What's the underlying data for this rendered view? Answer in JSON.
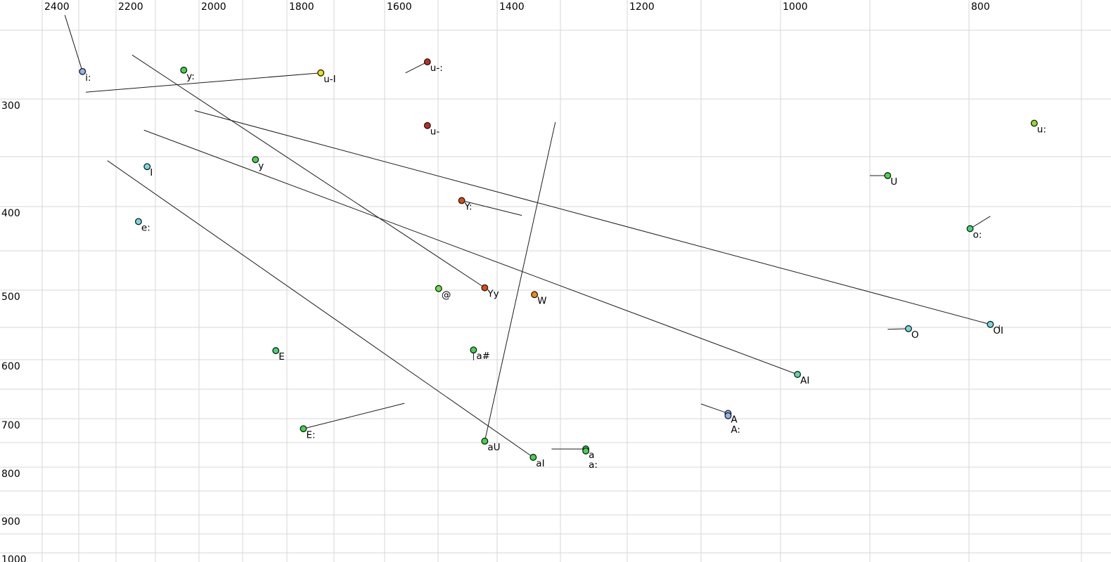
{
  "chart_data": {
    "type": "scatter",
    "description": "Vowel formant chart: F2 (Hz, reversed, top axis) vs F1 (Hz, downward left axis) with vowel tokens and movement lines",
    "x_axis": {
      "tick_labels": [
        "2400",
        "2200",
        "2000",
        "1800",
        "1600",
        "1400",
        "1200",
        "1000",
        "800"
      ],
      "reversed": true,
      "minor_grid_step_hz": 100,
      "range_hz": [
        2450,
        660
      ]
    },
    "y_axis": {
      "tick_labels": [
        "300",
        "400",
        "500",
        "600",
        "700",
        "800",
        "900",
        "1000"
      ],
      "increases_downward": true,
      "minor_grid_step_hz": 50,
      "range_hz": [
        230,
        1010
      ]
    },
    "style": {
      "grid_color": "#d7d7d7",
      "line_color": "#1c1c1c",
      "marker_stroke": "#1a1a1a",
      "label_color": "#000000",
      "background": "#ffffff"
    },
    "points": [
      {
        "label": "i:",
        "f2": 2290,
        "f1": 280,
        "color": "#94b2ec"
      },
      {
        "label": "y:",
        "f2": 2035,
        "f1": 279,
        "color": "#44d944"
      },
      {
        "label": "u-I",
        "f2": 1728,
        "f1": 281,
        "color": "#e8e40a"
      },
      {
        "label": "u-:",
        "f2": 1520,
        "f1": 273,
        "color": "#c32a21"
      },
      {
        "label": "u-",
        "f2": 1520,
        "f1": 323,
        "color": "#c32a21"
      },
      {
        "label": "u:",
        "f2": 742,
        "f1": 321,
        "color": "#8edc28"
      },
      {
        "label": "y",
        "f2": 1871,
        "f1": 353,
        "color": "#44d944"
      },
      {
        "label": "I",
        "f2": 2121,
        "f1": 360,
        "color": "#6fdede"
      },
      {
        "label": "U",
        "f2": 882,
        "f1": 369,
        "color": "#44d944"
      },
      {
        "label": "e:",
        "f2": 2143,
        "f1": 417,
        "color": "#6fdede"
      },
      {
        "label": "Y:",
        "f2": 1460,
        "f1": 394,
        "color": "#e04a10"
      },
      {
        "label": "o:",
        "f2": 799,
        "f1": 425,
        "color": "#3cd973"
      },
      {
        "label": "@",
        "f2": 1499,
        "f1": 498,
        "color": "#67e643"
      },
      {
        "label": "Yy",
        "f2": 1421,
        "f1": 497,
        "color": "#e04a10"
      },
      {
        "label": "W",
        "f2": 1341,
        "f1": 506,
        "color": "#ef8d00"
      },
      {
        "label": "O",
        "f2": 861,
        "f1": 552,
        "color": "#6fdede"
      },
      {
        "label": "OI",
        "f2": 781,
        "f1": 546,
        "color": "#6fdede"
      },
      {
        "label": "E",
        "f2": 1825,
        "f1": 586,
        "color": "#3cd973"
      },
      {
        "label": "a#",
        "f2": 1440,
        "f1": 585,
        "color": "#3bd948"
      },
      {
        "label": "AI",
        "f2": 981,
        "f1": 625,
        "color": "#52dfa8"
      },
      {
        "label": "A",
        "f2": 1066,
        "f1": 691,
        "color": "#94b2ec"
      },
      {
        "label": "A:",
        "f2": 1066,
        "f1": 695,
        "color": "#94b2ec"
      },
      {
        "label": "E:",
        "f2": 1765,
        "f1": 721,
        "color": "#3bd948"
      },
      {
        "label": "aU",
        "f2": 1421,
        "f1": 747,
        "color": "#3bd948"
      },
      {
        "label": "aI",
        "f2": 1343,
        "f1": 780,
        "color": "#3bd948"
      },
      {
        "label": "a",
        "f2": 1262,
        "f1": 763,
        "color": "#3bd948"
      },
      {
        "label": "a:",
        "f2": 1262,
        "f1": 767,
        "color": "#3bd948"
      }
    ],
    "segments": [
      {
        "from": {
          "f2": 2338,
          "f1": 239
        },
        "to": {
          "f2": 2290,
          "f1": 280
        }
      },
      {
        "from": {
          "f2": 2281,
          "f1": 295
        },
        "to": {
          "f2": 1728,
          "f1": 281
        }
      },
      {
        "from": {
          "f2": 2159,
          "f1": 268
        },
        "to": {
          "f2": 1421,
          "f1": 497
        }
      },
      {
        "from": {
          "f2": 2010,
          "f1": 310
        },
        "to": {
          "f2": 781,
          "f1": 546
        }
      },
      {
        "from": {
          "f2": 2129,
          "f1": 327
        },
        "to": {
          "f2": 981,
          "f1": 625
        }
      },
      {
        "from": {
          "f2": 2223,
          "f1": 354
        },
        "to": {
          "f2": 1343,
          "f1": 780
        }
      },
      {
        "from": {
          "f2": 1561,
          "f1": 281
        },
        "to": {
          "f2": 1520,
          "f1": 273
        }
      },
      {
        "from": {
          "f2": 1460,
          "f1": 394
        },
        "to": {
          "f2": 1361,
          "f1": 410
        }
      },
      {
        "from": {
          "f2": 1308,
          "f1": 320
        },
        "to": {
          "f2": 1421,
          "f1": 747
        }
      },
      {
        "from": {
          "f2": 1100,
          "f1": 675
        },
        "to": {
          "f2": 1066,
          "f1": 691
        }
      },
      {
        "from": {
          "f2": 900,
          "f1": 369
        },
        "to": {
          "f2": 882,
          "f1": 369
        }
      },
      {
        "from": {
          "f2": 781,
          "f1": 411
        },
        "to": {
          "f2": 799,
          "f1": 425
        }
      },
      {
        "from": {
          "f2": 882,
          "f1": 553
        },
        "to": {
          "f2": 861,
          "f1": 552
        }
      },
      {
        "from": {
          "f2": 1765,
          "f1": 721
        },
        "to": {
          "f2": 1563,
          "f1": 674
        }
      },
      {
        "from": {
          "f2": 1314,
          "f1": 763
        },
        "to": {
          "f2": 1262,
          "f1": 763
        }
      },
      {
        "from": {
          "f2": 1440,
          "f1": 585
        },
        "to": {
          "f2": 1440,
          "f1": 601
        }
      },
      {
        "from": {
          "f2": 773,
          "f1": 547
        },
        "to": {
          "f2": 773,
          "f1": 556
        }
      }
    ]
  }
}
